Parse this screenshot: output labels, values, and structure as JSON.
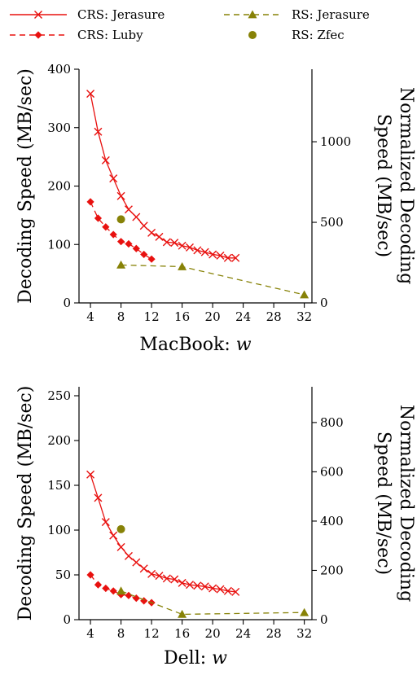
{
  "legend": [
    {
      "label": "CRS: Jerasure",
      "style": "solid",
      "color": "#e8110f",
      "marker": "x"
    },
    {
      "label": "CRS: Luby",
      "style": "dashed",
      "color": "#e8110f",
      "marker": "diamond"
    },
    {
      "label": "RS: Jerasure",
      "style": "dashed",
      "color": "#878207",
      "marker": "triangle"
    },
    {
      "label": "RS: Zfec",
      "style": "none",
      "color": "#878207",
      "marker": "circle"
    }
  ],
  "chart_data": [
    {
      "type": "line",
      "title": "",
      "xlabel_prefix": "MacBook:",
      "xlabel_var": "w",
      "ylabel": "Decoding Speed (MB/sec)",
      "y2label_lines": [
        "Normalized Decoding",
        "Speed (MB/sec)"
      ],
      "xlim": [
        2.5,
        33
      ],
      "xticks": [
        4,
        8,
        12,
        16,
        20,
        24,
        28,
        32
      ],
      "ylim": [
        0,
        400
      ],
      "yticks": [
        0,
        100,
        200,
        300,
        400
      ],
      "y2lim": [
        0,
        1450
      ],
      "y2ticks": [
        0,
        500,
        1000
      ],
      "series": [
        {
          "name": "CRS: Jerasure",
          "x": [
            4,
            5,
            6,
            7,
            8,
            9,
            10,
            11,
            12,
            13,
            14,
            15,
            16,
            17,
            18,
            19,
            20,
            21,
            22,
            23
          ],
          "y": [
            358,
            293,
            244,
            213,
            183,
            160,
            147,
            132,
            120,
            113,
            104,
            103,
            98,
            95,
            90,
            87,
            83,
            81,
            77,
            77
          ]
        },
        {
          "name": "CRS: Luby",
          "x": [
            4,
            5,
            6,
            7,
            8,
            9,
            10,
            11,
            12
          ],
          "y": [
            173,
            145,
            130,
            117,
            105,
            101,
            93,
            83,
            75
          ]
        },
        {
          "name": "RS: Jerasure",
          "x": [
            8,
            16,
            32
          ],
          "y": [
            65,
            62,
            14
          ]
        },
        {
          "name": "RS: Zfec",
          "x": [
            8
          ],
          "y": [
            143
          ]
        }
      ]
    },
    {
      "type": "line",
      "title": "",
      "xlabel_prefix": "Dell:",
      "xlabel_var": "w",
      "ylabel": "Decoding Speed (MB/sec)",
      "y2label_lines": [
        "Normalized Decoding",
        "Speed (MB/sec)"
      ],
      "xlim": [
        2.5,
        33
      ],
      "xticks": [
        4,
        8,
        12,
        16,
        20,
        24,
        28,
        32
      ],
      "ylim": [
        0,
        260
      ],
      "yticks": [
        0,
        50,
        100,
        150,
        200,
        250
      ],
      "y2lim": [
        0,
        945
      ],
      "y2ticks": [
        0,
        200,
        400,
        600,
        800
      ],
      "series": [
        {
          "name": "CRS: Jerasure",
          "x": [
            4,
            5,
            6,
            7,
            8,
            9,
            10,
            11,
            12,
            13,
            14,
            15,
            16,
            17,
            18,
            19,
            20,
            21,
            22,
            23
          ],
          "y": [
            162,
            136,
            109,
            94,
            81,
            71,
            64,
            57,
            51,
            49,
            46,
            45,
            41,
            39,
            38,
            37,
            35,
            34,
            32,
            31
          ]
        },
        {
          "name": "CRS: Luby",
          "x": [
            4,
            5,
            6,
            7,
            8,
            9,
            10,
            11,
            12
          ],
          "y": [
            50,
            39,
            35,
            32,
            28,
            27,
            24,
            21,
            19
          ]
        },
        {
          "name": "RS: Jerasure",
          "x": [
            8,
            16,
            32
          ],
          "y": [
            32,
            6,
            8
          ]
        },
        {
          "name": "RS: Zfec",
          "x": [
            8
          ],
          "y": [
            101
          ]
        }
      ]
    }
  ]
}
